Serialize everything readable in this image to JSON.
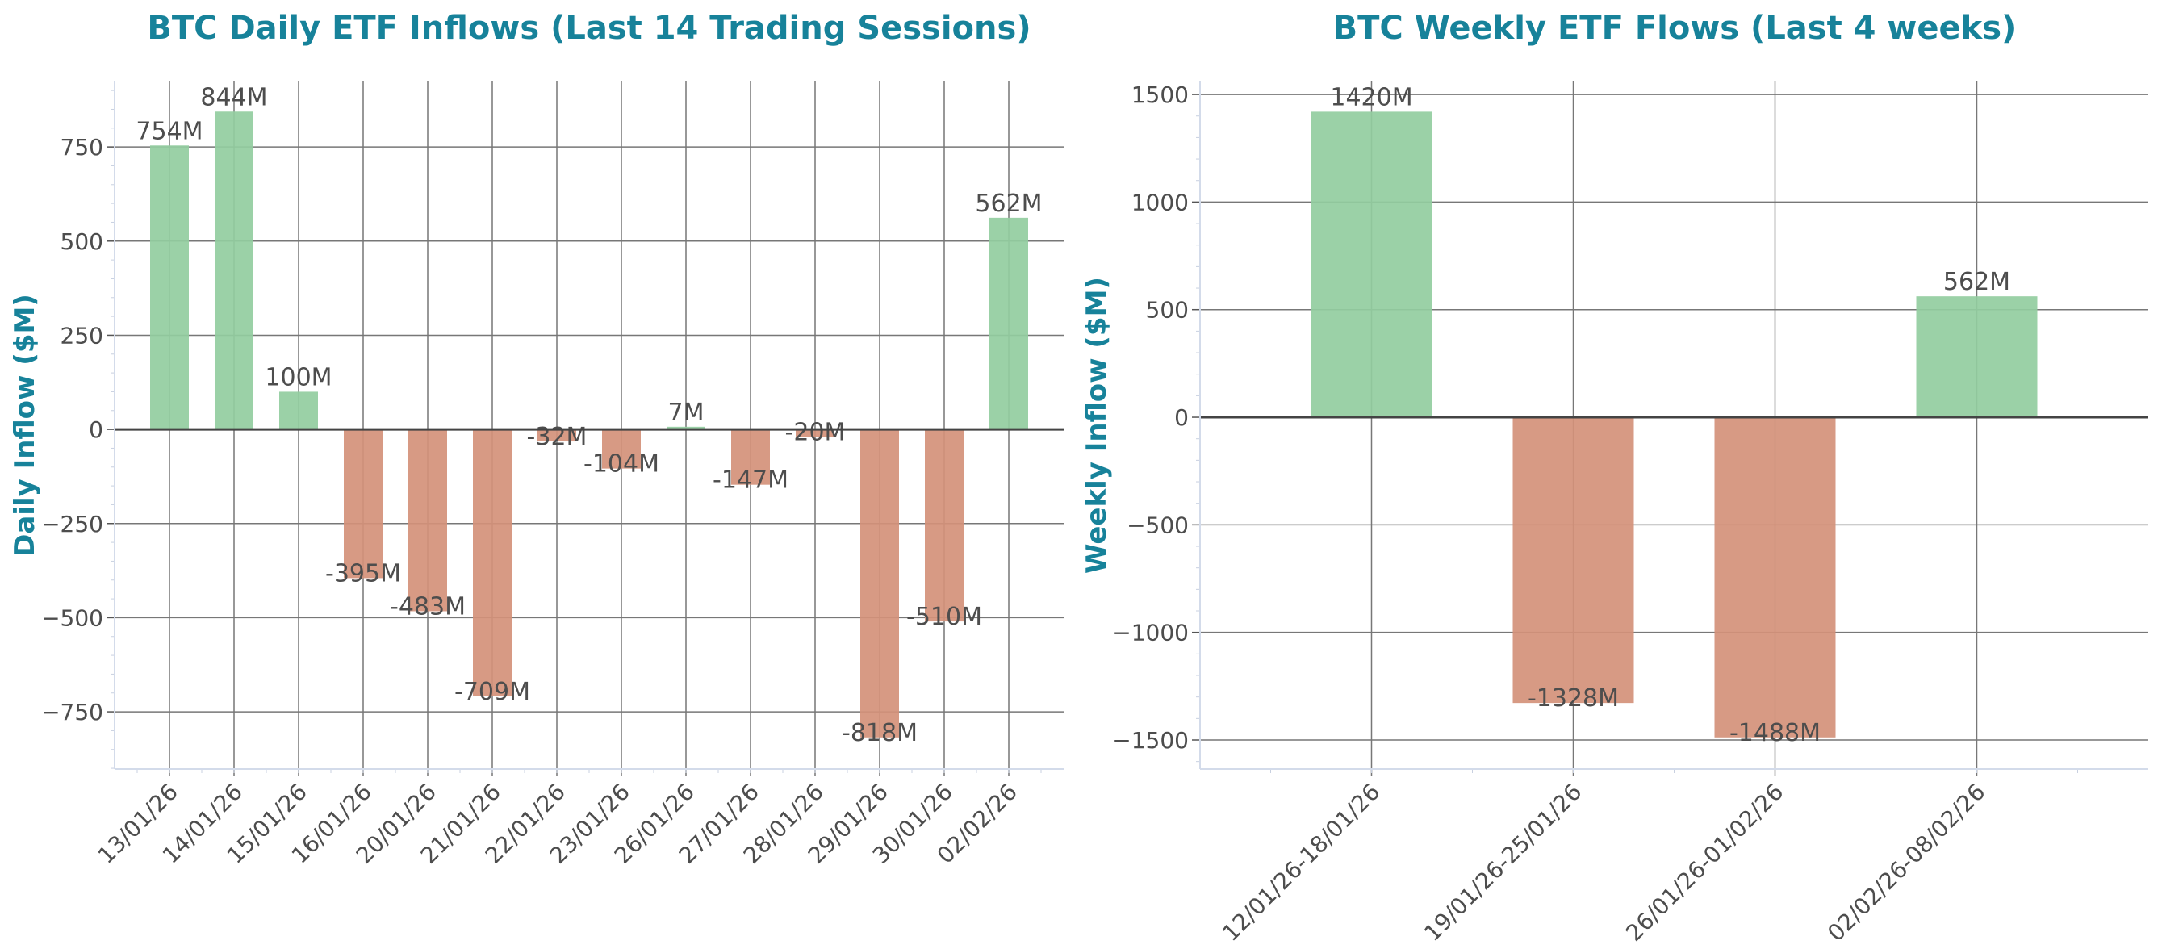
{
  "chart_data": [
    {
      "type": "bar",
      "title": "BTC Daily ETF Inflows (Last 14 Trading Sessions)",
      "xlabel": "",
      "ylabel": "Daily Inflow ($M)",
      "categories": [
        "13/01/26",
        "14/01/26",
        "15/01/26",
        "16/01/26",
        "20/01/26",
        "21/01/26",
        "22/01/26",
        "23/01/26",
        "26/01/26",
        "27/01/26",
        "28/01/26",
        "29/01/26",
        "30/01/26",
        "02/02/26"
      ],
      "values": [
        754,
        844,
        100,
        -395,
        -483,
        -709,
        -32,
        -104,
        7,
        -147,
        -20,
        -818,
        -510,
        562
      ],
      "data_labels": [
        "754M",
        "844M",
        "100M",
        "-395M",
        "-483M",
        "-709M",
        "-32M",
        "-104M",
        "7M",
        "-147M",
        "-20M",
        "-818M",
        "-510M",
        "562M"
      ],
      "ylim": [
        -902,
        926
      ],
      "yticks": [
        -750,
        -500,
        -250,
        0,
        250,
        500,
        750
      ],
      "ytick_labels": [
        "−750",
        "−500",
        "−250",
        "0",
        "250",
        "500",
        "750"
      ],
      "grid": true,
      "colors": {
        "positive": "#93cda0",
        "negative": "#d4917a",
        "title": "#17829a"
      }
    },
    {
      "type": "bar",
      "title": "BTC Weekly ETF Flows (Last 4 weeks)",
      "xlabel": "",
      "ylabel": "Weekly Inflow ($M)",
      "categories": [
        "12/01/26-18/01/26",
        "19/01/26-25/01/26",
        "26/01/26-01/02/26",
        "02/02/26-08/02/26"
      ],
      "values": [
        1420,
        -1328,
        -1488,
        562
      ],
      "data_labels": [
        "1420M",
        "-1328M",
        "-1488M",
        "562M"
      ],
      "ylim": [
        -1635,
        1564
      ],
      "yticks": [
        -1500,
        -1000,
        -500,
        0,
        500,
        1000,
        1500
      ],
      "ytick_labels": [
        "−1500",
        "−1000",
        "−500",
        "0",
        "500",
        "1000",
        "1500"
      ],
      "grid": true,
      "colors": {
        "positive": "#93cda0",
        "negative": "#d4917a",
        "title": "#17829a"
      }
    }
  ]
}
